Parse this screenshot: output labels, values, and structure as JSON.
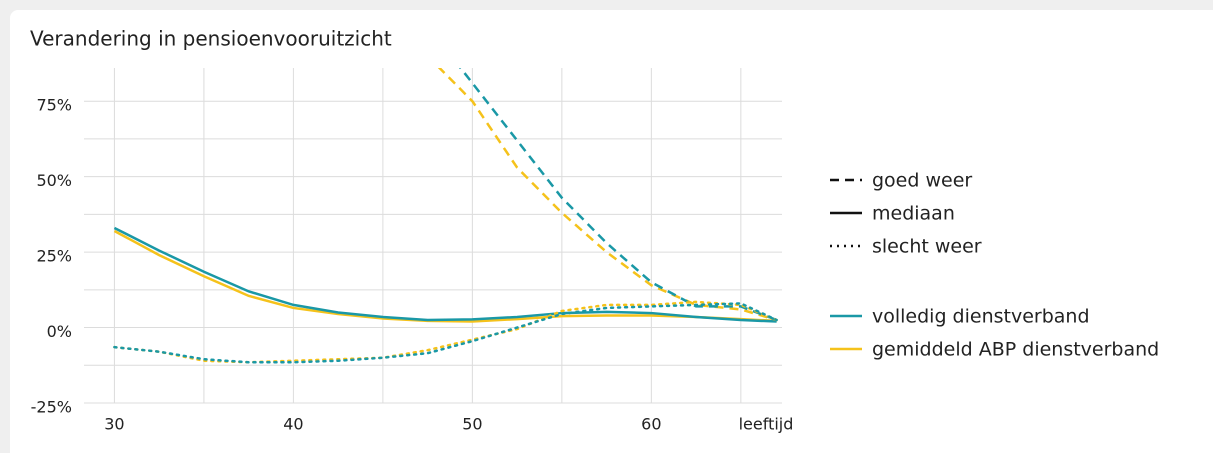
{
  "chart_data": {
    "type": "line",
    "title": "Verandering in pensioenvooruitzicht",
    "x_label": "leeftijd",
    "x": [
      30,
      32.5,
      35,
      37.5,
      40,
      42.5,
      45,
      47.5,
      50,
      52.5,
      55,
      57.5,
      60,
      62.5,
      65,
      67
    ],
    "xlim": [
      28.3,
      67.3
    ],
    "xticks": [
      30,
      40,
      50,
      60
    ],
    "xgrid": [
      30,
      35,
      40,
      45,
      50,
      55,
      60,
      65
    ],
    "ylim": [
      -25,
      86
    ],
    "yticks": [
      {
        "value": -25,
        "label": "-25%"
      },
      {
        "value": 0,
        "label": "0%"
      },
      {
        "value": 25,
        "label": "25%"
      },
      {
        "value": 50,
        "label": "50%"
      },
      {
        "value": 75,
        "label": "75%"
      }
    ],
    "ygrid": [
      -25,
      -12.5,
      0,
      12.5,
      25,
      37.5,
      50,
      62.5,
      75
    ],
    "grid": true,
    "legend_styles": [
      {
        "name": "goed weer",
        "dash": "dashed"
      },
      {
        "name": "mediaan",
        "dash": "solid"
      },
      {
        "name": "slecht weer",
        "dash": "dotted"
      }
    ],
    "legend_colors": [
      {
        "name": "volledig dienstverband",
        "color": "#1a98a6"
      },
      {
        "name": "gemiddeld ABP dienstverband",
        "color": "#f5c21b"
      }
    ],
    "series": [
      {
        "color": "#f5c21b",
        "dash": "solid",
        "values": [
          32,
          24,
          17,
          10.5,
          6.5,
          4.5,
          3,
          2.2,
          2,
          2.8,
          3.8,
          4,
          4,
          3.5,
          2.8,
          2.2
        ]
      },
      {
        "color": "#1a98a6",
        "dash": "solid",
        "values": [
          33,
          25.5,
          18.5,
          12,
          7.5,
          5,
          3.5,
          2.5,
          2.7,
          3.5,
          4.8,
          5.2,
          4.8,
          3.5,
          2.5,
          2
        ]
      },
      {
        "color": "#f5c21b",
        "dash": "dashed",
        "values": [
          null,
          null,
          null,
          null,
          null,
          null,
          null,
          90,
          75,
          53,
          38,
          25,
          14,
          7.5,
          6,
          2.5
        ]
      },
      {
        "color": "#1a98a6",
        "dash": "dashed",
        "values": [
          null,
          null,
          null,
          null,
          null,
          null,
          null,
          100,
          81,
          62,
          43,
          28,
          15,
          7,
          7,
          2.5
        ]
      },
      {
        "color": "#f5c21b",
        "dash": "dotted",
        "values": [
          -6.5,
          -8,
          -11,
          -11.5,
          -11,
          -10.5,
          -10,
          -7.5,
          -4,
          -0.5,
          5.5,
          7.5,
          7.5,
          8.5,
          7.5,
          2.5
        ]
      },
      {
        "color": "#1a98a6",
        "dash": "dotted",
        "values": [
          -6.5,
          -8,
          -10.5,
          -11.5,
          -11.5,
          -11,
          -10,
          -8.5,
          -4.5,
          0,
          4.5,
          6.5,
          7,
          7.5,
          8,
          2.5
        ]
      }
    ]
  }
}
